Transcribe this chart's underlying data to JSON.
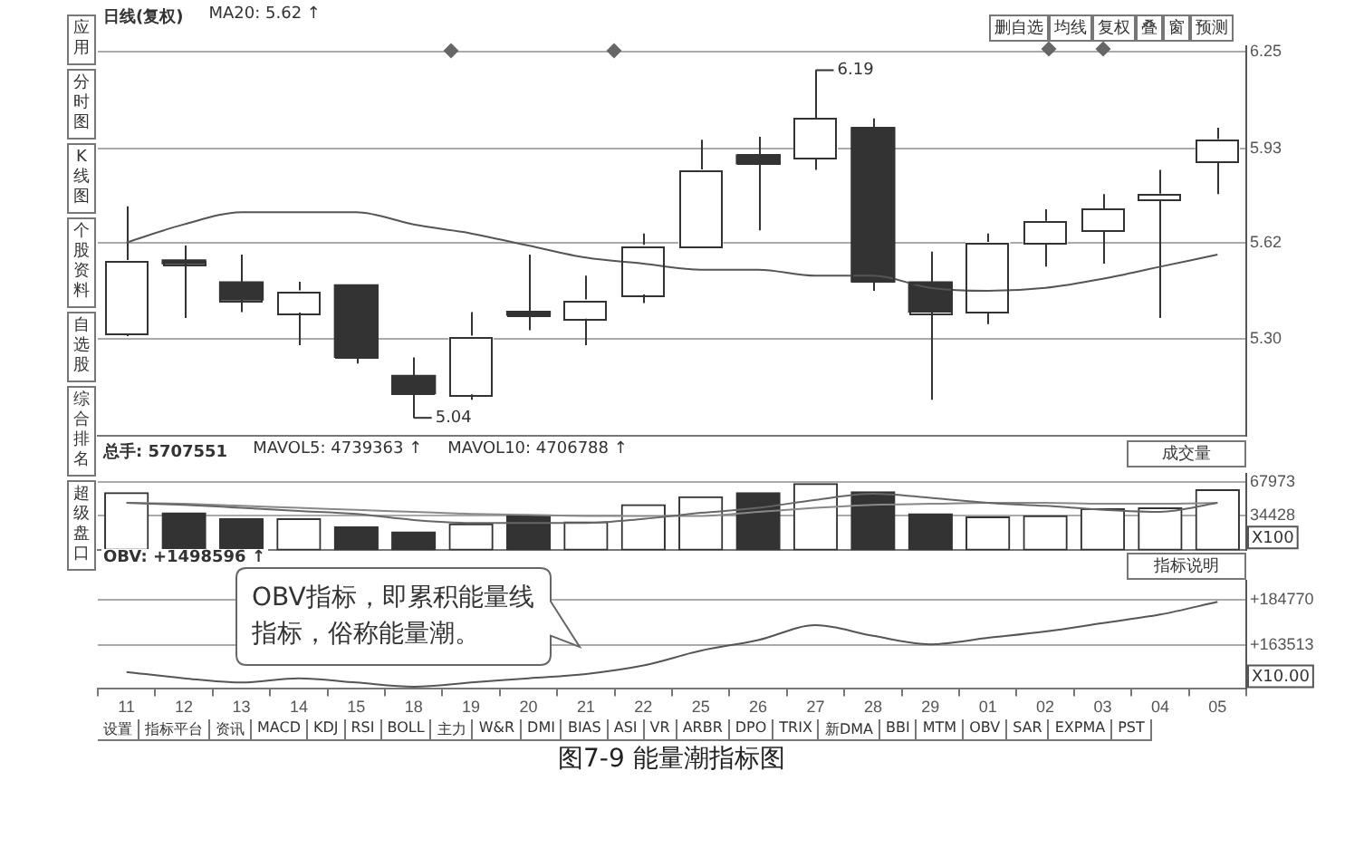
{
  "chart_data": [
    {
      "type": "candlestick",
      "title": "日线(复权)",
      "annotations": [
        "MA20: 5.62 ↑",
        {
          "text": "6.19",
          "x": "27",
          "y": 6.19
        },
        {
          "text": "5.04",
          "x": "18",
          "y": 5.04
        }
      ],
      "categories": [
        "11",
        "12",
        "13",
        "14",
        "15",
        "18",
        "19",
        "20",
        "21",
        "22",
        "25",
        "26",
        "27",
        "28",
        "29",
        "01",
        "02",
        "03",
        "04",
        "05"
      ],
      "ohlc": [
        [
          5.32,
          5.74,
          5.31,
          5.56
        ],
        [
          5.56,
          5.61,
          5.37,
          5.55
        ],
        [
          5.49,
          5.58,
          5.39,
          5.43
        ],
        [
          5.39,
          5.49,
          5.28,
          5.46
        ],
        [
          5.48,
          5.48,
          5.22,
          5.24
        ],
        [
          5.18,
          5.24,
          5.04,
          5.12
        ],
        [
          5.12,
          5.39,
          5.1,
          5.31
        ],
        [
          5.39,
          5.58,
          5.33,
          5.38
        ],
        [
          5.37,
          5.51,
          5.28,
          5.43
        ],
        [
          5.45,
          5.65,
          5.42,
          5.61
        ],
        [
          5.61,
          5.96,
          5.61,
          5.86
        ],
        [
          5.91,
          5.97,
          5.66,
          5.88
        ],
        [
          5.9,
          6.19,
          5.86,
          6.03
        ],
        [
          6.0,
          6.03,
          5.46,
          5.49
        ],
        [
          5.49,
          5.59,
          5.1,
          5.39
        ],
        [
          5.39,
          5.65,
          5.35,
          5.62
        ],
        [
          5.62,
          5.73,
          5.54,
          5.69
        ],
        [
          5.66,
          5.78,
          5.55,
          5.73
        ],
        [
          5.76,
          5.86,
          5.37,
          5.78
        ],
        [
          5.89,
          6.0,
          5.78,
          5.96
        ]
      ],
      "colors": [
        "#ffffff",
        "#333333",
        "#333333",
        "#ffffff",
        "#333333",
        "#333333",
        "#ffffff",
        "#333333",
        "#ffffff",
        "#ffffff",
        "#ffffff",
        "#333333",
        "#ffffff",
        "#333333",
        "#333333",
        "#ffffff",
        "#ffffff",
        "#ffffff",
        "#ffffff",
        "#ffffff"
      ],
      "series": [
        {
          "type": "line",
          "color": "#555555",
          "values": [
            5.62,
            5.68,
            5.72,
            5.72,
            5.72,
            5.68,
            5.65,
            5.61,
            5.57,
            5.55,
            5.53,
            5.53,
            5.51,
            5.51,
            5.47,
            5.46,
            5.47,
            5.5,
            5.54,
            5.58
          ]
        }
      ],
      "ylim": [
        4.98,
        6.27
      ],
      "yticks": [
        {
          "value": 5.3,
          "label": "5.30"
        },
        {
          "value": 5.62,
          "label": "5.62"
        },
        {
          "value": 5.93,
          "label": "5.93"
        },
        {
          "value": 6.25,
          "label": "6.25"
        }
      ],
      "grid": "y",
      "legend": false,
      "tick_labels": "y"
    },
    {
      "type": "bar",
      "ylabel": "X100",
      "annotations": [
        "总手: 5707551",
        "MAVOL5: 4739363 ↑",
        "MAVOL10: 4706788 ↑",
        "成交量"
      ],
      "categories": [
        "11",
        "12",
        "13",
        "14",
        "15",
        "18",
        "19",
        "20",
        "21",
        "22",
        "25",
        "26",
        "27",
        "28",
        "29",
        "01",
        "02",
        "03",
        "04",
        "05"
      ],
      "series": [
        {
          "type": "bar",
          "colors": [
            "#ffffff",
            "#333333",
            "#333333",
            "#ffffff",
            "#333333",
            "#333333",
            "#ffffff",
            "#333333",
            "#ffffff",
            "#ffffff",
            "#ffffff",
            "#333333",
            "#ffffff",
            "#333333",
            "#333333",
            "#ffffff",
            "#ffffff",
            "#ffffff",
            "#ffffff",
            "#ffffff"
          ],
          "values": [
            57000,
            37000,
            31000,
            31000,
            23000,
            18000,
            26000,
            35000,
            28000,
            45000,
            53000,
            57000,
            66000,
            58000,
            36000,
            33000,
            34000,
            41000,
            42000,
            60000
          ]
        },
        {
          "type": "line",
          "color": "#666666",
          "values": [
            47000,
            45000,
            42000,
            39000,
            36000,
            30000,
            27000,
            27000,
            27000,
            31000,
            37000,
            42000,
            50000,
            56000,
            52000,
            47000,
            44000,
            40000,
            38000,
            47000
          ]
        },
        {
          "type": "line",
          "color": "#888888",
          "values": [
            47000,
            46000,
            44000,
            42000,
            40000,
            38000,
            36000,
            35000,
            34000,
            34000,
            34000,
            38000,
            42000,
            45000,
            46000,
            47000,
            47000,
            46000,
            46000,
            47000
          ]
        }
      ],
      "ylim": [
        0,
        76000
      ],
      "yticks": [
        34428,
        67973
      ],
      "grid": "y",
      "legend": false,
      "tick_labels": "y"
    },
    {
      "type": "line",
      "ylabel": "X10.00",
      "annotations": [
        "OBV: +1498596 ↑",
        "指标说明",
        "OBV指标，即累积能量线指标，俗称能量潮。"
      ],
      "categories": [
        "11",
        "12",
        "13",
        "14",
        "15",
        "18",
        "19",
        "20",
        "21",
        "22",
        "25",
        "26",
        "27",
        "28",
        "29",
        "01",
        "02",
        "03",
        "04",
        "05"
      ],
      "values": [
        151000,
        148000,
        146000,
        148000,
        146000,
        144000,
        146000,
        148000,
        150000,
        154000,
        161000,
        166000,
        173000,
        168000,
        164000,
        167000,
        170000,
        174000,
        178000,
        184000
      ],
      "color": "#555555",
      "ylim": [
        143000,
        194000
      ],
      "yticks": [
        {
          "value": 163513,
          "label": "+163513"
        },
        {
          "value": 184770,
          "label": "+184770"
        }
      ],
      "grid": "y",
      "legend": false
    },
    {
      "type": "other",
      "annotations": [
        "应用",
        "分时图",
        "K线图",
        "个股资料",
        "自选股",
        "综合排名",
        "超级盘口"
      ]
    },
    {
      "type": "other",
      "annotations": [
        "删自选",
        "均线",
        "复权",
        "叠",
        "窗",
        "预测"
      ]
    },
    {
      "type": "other",
      "annotations": [
        "设置",
        "指标平台",
        "资讯",
        "MACD",
        "KDJ",
        "RSI",
        "BOLL",
        "主力",
        "W&R",
        "DMI",
        "BIAS",
        "ASI",
        "VR",
        "ARBR",
        "DPO",
        "TRIX",
        "新DMA",
        "BBI",
        "MTM",
        "OBV",
        "SAR",
        "EXPMA",
        "PST"
      ]
    },
    {
      "type": "other",
      "title": "图7-9  能量潮指标图"
    }
  ]
}
